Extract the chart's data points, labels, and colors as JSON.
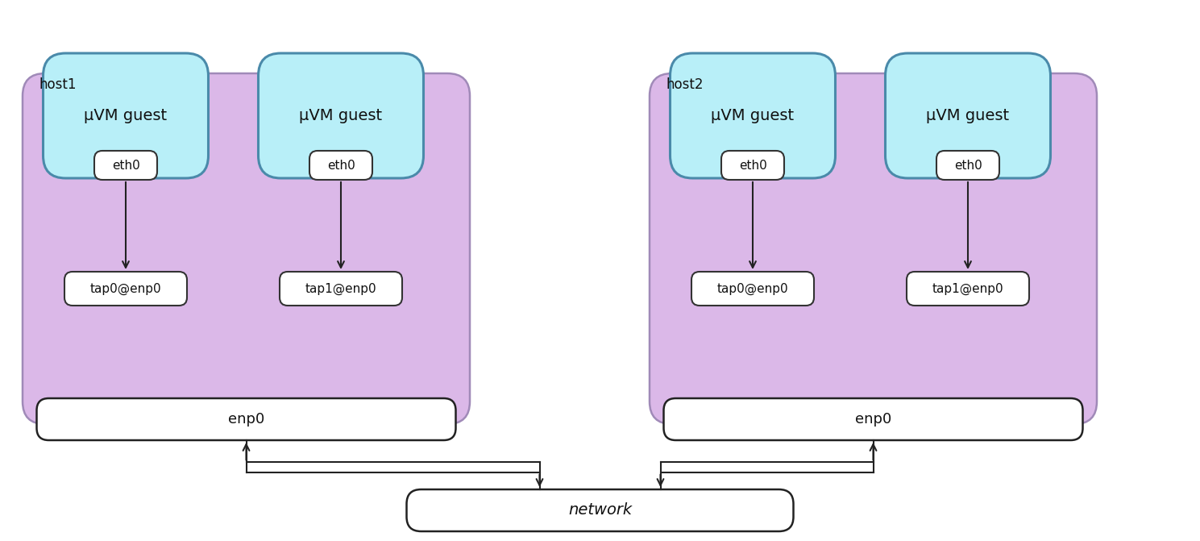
{
  "background_color": "#ffffff",
  "host_box_color": "#dbb8e8",
  "host_box_edge_color": "#a08ab8",
  "vm_box_color": "#b8eff8",
  "vm_box_edge_color": "#4a8aaa",
  "tap_box_color": "#ffffff",
  "tap_box_edge_color": "#333333",
  "enp_box_color": "#ffffff",
  "enp_box_edge_color": "#222222",
  "network_box_color": "#ffffff",
  "network_box_edge_color": "#222222",
  "arrow_color": "#222222",
  "text_color": "#111111",
  "host1_label": "host1",
  "host2_label": "host2",
  "vm_label": "μVM guest",
  "eth0_label": "eth0",
  "tap0_label": "tap0@enp0",
  "tap1_label": "tap1@enp0",
  "enp_label": "enp0",
  "network_label": "network",
  "fig_w": 14.89,
  "fig_h": 6.71,
  "xlim": 14.89,
  "ylim": 6.71
}
